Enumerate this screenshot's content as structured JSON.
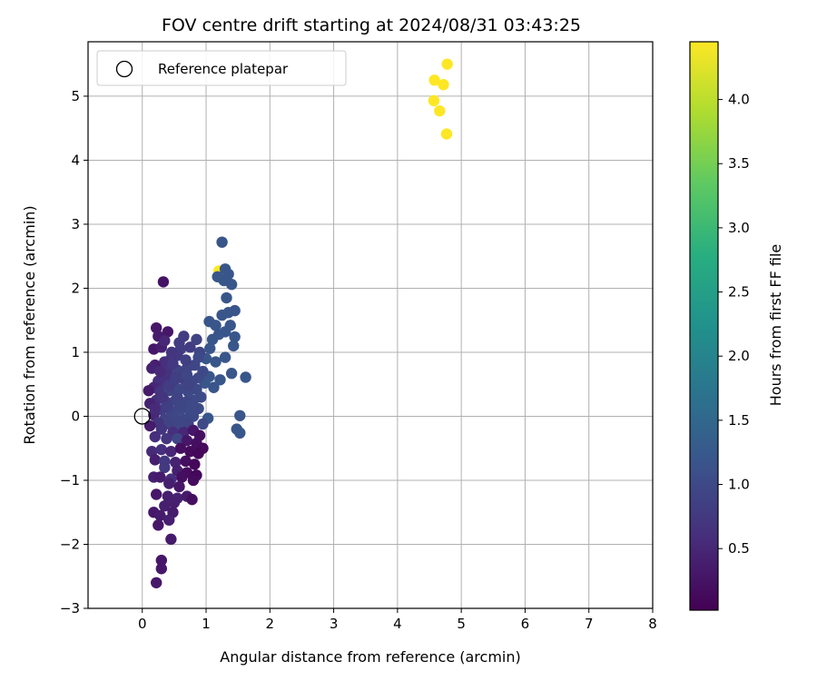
{
  "chart_data": {
    "type": "scatter",
    "title": "FOV centre drift starting at 2024/08/31 03:43:25",
    "xlabel": "Angular distance from reference (arcmin)",
    "ylabel": "Rotation from reference (arcmin)",
    "xlim": [
      -0.85,
      8.0
    ],
    "ylim": [
      -3.0,
      5.85
    ],
    "xticks": [
      0,
      1,
      2,
      3,
      4,
      5,
      6,
      7,
      8
    ],
    "yticks": [
      -3,
      -2,
      -1,
      0,
      1,
      2,
      3,
      4,
      5
    ],
    "grid": true,
    "legend": {
      "position": "top-left",
      "entries": [
        "Reference platepar"
      ]
    },
    "reference_point": {
      "x": 0,
      "y": 0
    },
    "colorbar": {
      "label": "Hours from first FF file",
      "range": [
        0.02,
        4.45
      ],
      "ticks": [
        0.5,
        1.0,
        1.5,
        2.0,
        2.5,
        3.0,
        3.5,
        4.0
      ],
      "tick_labels": [
        "0.5",
        "1.0",
        "1.5",
        "2.0",
        "2.5",
        "3.0",
        "3.5",
        "4.0"
      ],
      "colormap": "viridis"
    },
    "points": [
      {
        "x": 4.78,
        "y": 5.5,
        "c": 4.45
      },
      {
        "x": 4.58,
        "y": 5.25,
        "c": 4.45
      },
      {
        "x": 4.72,
        "y": 5.18,
        "c": 4.45
      },
      {
        "x": 4.57,
        "y": 4.93,
        "c": 4.45
      },
      {
        "x": 4.66,
        "y": 4.77,
        "c": 4.45
      },
      {
        "x": 4.77,
        "y": 4.41,
        "c": 4.45
      },
      {
        "x": 1.2,
        "y": 2.27,
        "c": 4.45
      },
      {
        "x": 1.25,
        "y": 2.72,
        "c": 1.2
      },
      {
        "x": 1.3,
        "y": 2.3,
        "c": 1.2
      },
      {
        "x": 1.35,
        "y": 2.22,
        "c": 1.2
      },
      {
        "x": 1.4,
        "y": 2.06,
        "c": 1.2
      },
      {
        "x": 1.18,
        "y": 2.18,
        "c": 1.2
      },
      {
        "x": 1.28,
        "y": 2.12,
        "c": 1.2
      },
      {
        "x": 1.32,
        "y": 1.85,
        "c": 1.2
      },
      {
        "x": 1.45,
        "y": 1.65,
        "c": 1.2
      },
      {
        "x": 1.25,
        "y": 1.58,
        "c": 1.2
      },
      {
        "x": 1.35,
        "y": 1.62,
        "c": 1.2
      },
      {
        "x": 1.05,
        "y": 1.48,
        "c": 1.2
      },
      {
        "x": 1.15,
        "y": 1.42,
        "c": 1.2
      },
      {
        "x": 1.38,
        "y": 1.42,
        "c": 1.2
      },
      {
        "x": 1.45,
        "y": 1.24,
        "c": 1.2
      },
      {
        "x": 1.3,
        "y": 1.32,
        "c": 1.2
      },
      {
        "x": 1.2,
        "y": 1.28,
        "c": 1.2
      },
      {
        "x": 1.1,
        "y": 1.2,
        "c": 1.2
      },
      {
        "x": 1.43,
        "y": 1.1,
        "c": 1.2
      },
      {
        "x": 1.3,
        "y": 0.92,
        "c": 1.2
      },
      {
        "x": 1.06,
        "y": 1.06,
        "c": 1.2
      },
      {
        "x": 1.15,
        "y": 0.85,
        "c": 1.2
      },
      {
        "x": 1.0,
        "y": 0.9,
        "c": 1.2
      },
      {
        "x": 1.4,
        "y": 0.67,
        "c": 1.2
      },
      {
        "x": 1.62,
        "y": 0.61,
        "c": 1.2
      },
      {
        "x": 1.22,
        "y": 0.57,
        "c": 1.2
      },
      {
        "x": 1.05,
        "y": 0.62,
        "c": 1.2
      },
      {
        "x": 1.12,
        "y": 0.45,
        "c": 1.2
      },
      {
        "x": 0.98,
        "y": 0.52,
        "c": 1.2
      },
      {
        "x": 1.53,
        "y": 0.01,
        "c": 1.2
      },
      {
        "x": 1.48,
        "y": -0.2,
        "c": 1.2
      },
      {
        "x": 1.53,
        "y": -0.26,
        "c": 1.2
      },
      {
        "x": 1.03,
        "y": -0.03,
        "c": 1.2
      },
      {
        "x": 0.95,
        "y": -0.12,
        "c": 1.0
      },
      {
        "x": 0.33,
        "y": 2.1,
        "c": 0.25
      },
      {
        "x": 0.22,
        "y": 1.38,
        "c": 0.3
      },
      {
        "x": 0.4,
        "y": 1.32,
        "c": 0.3
      },
      {
        "x": 0.25,
        "y": 1.25,
        "c": 0.35
      },
      {
        "x": 0.18,
        "y": 1.05,
        "c": 0.3
      },
      {
        "x": 0.3,
        "y": 1.08,
        "c": 0.4
      },
      {
        "x": 0.65,
        "y": 1.25,
        "c": 0.8
      },
      {
        "x": 0.6,
        "y": 1.05,
        "c": 0.8
      },
      {
        "x": 0.75,
        "y": 1.08,
        "c": 0.8
      },
      {
        "x": 0.85,
        "y": 1.2,
        "c": 0.9
      },
      {
        "x": 0.9,
        "y": 1.0,
        "c": 0.95
      },
      {
        "x": 0.55,
        "y": 0.95,
        "c": 0.75
      },
      {
        "x": 0.45,
        "y": 0.9,
        "c": 0.7
      },
      {
        "x": 0.35,
        "y": 0.85,
        "c": 0.6
      },
      {
        "x": 0.2,
        "y": 0.8,
        "c": 0.4
      },
      {
        "x": 0.15,
        "y": 0.75,
        "c": 0.45
      },
      {
        "x": 0.4,
        "y": 0.7,
        "c": 0.7
      },
      {
        "x": 0.55,
        "y": 0.72,
        "c": 0.9
      },
      {
        "x": 0.7,
        "y": 0.75,
        "c": 0.9
      },
      {
        "x": 0.82,
        "y": 0.8,
        "c": 0.95
      },
      {
        "x": 0.95,
        "y": 0.7,
        "c": 1.0
      },
      {
        "x": 0.88,
        "y": 0.6,
        "c": 1.0
      },
      {
        "x": 0.78,
        "y": 0.55,
        "c": 0.95
      },
      {
        "x": 0.65,
        "y": 0.58,
        "c": 0.9
      },
      {
        "x": 0.5,
        "y": 0.55,
        "c": 0.85
      },
      {
        "x": 0.35,
        "y": 0.5,
        "c": 0.75
      },
      {
        "x": 0.25,
        "y": 0.55,
        "c": 0.6
      },
      {
        "x": 0.18,
        "y": 0.45,
        "c": 0.5
      },
      {
        "x": 0.1,
        "y": 0.4,
        "c": 0.35
      },
      {
        "x": 0.28,
        "y": 0.38,
        "c": 0.7
      },
      {
        "x": 0.42,
        "y": 0.4,
        "c": 0.9
      },
      {
        "x": 0.58,
        "y": 0.42,
        "c": 0.95
      },
      {
        "x": 0.72,
        "y": 0.38,
        "c": 1.0
      },
      {
        "x": 0.85,
        "y": 0.42,
        "c": 1.0
      },
      {
        "x": 0.92,
        "y": 0.3,
        "c": 1.0
      },
      {
        "x": 0.8,
        "y": 0.25,
        "c": 1.0
      },
      {
        "x": 0.68,
        "y": 0.22,
        "c": 0.95
      },
      {
        "x": 0.52,
        "y": 0.25,
        "c": 0.95
      },
      {
        "x": 0.38,
        "y": 0.22,
        "c": 0.85
      },
      {
        "x": 0.22,
        "y": 0.25,
        "c": 0.6
      },
      {
        "x": 0.12,
        "y": 0.2,
        "c": 0.45
      },
      {
        "x": 0.3,
        "y": 0.1,
        "c": 0.8
      },
      {
        "x": 0.45,
        "y": 0.08,
        "c": 0.95
      },
      {
        "x": 0.6,
        "y": 0.1,
        "c": 1.0
      },
      {
        "x": 0.75,
        "y": 0.08,
        "c": 1.0
      },
      {
        "x": 0.88,
        "y": 0.12,
        "c": 1.0
      },
      {
        "x": 0.18,
        "y": 0.02,
        "c": 0.5
      },
      {
        "x": 0.35,
        "y": -0.05,
        "c": 0.9
      },
      {
        "x": 0.5,
        "y": -0.02,
        "c": 0.95
      },
      {
        "x": 0.65,
        "y": -0.05,
        "c": 1.0
      },
      {
        "x": 0.8,
        "y": 0.0,
        "c": 1.0
      },
      {
        "x": 0.25,
        "y": -0.1,
        "c": 0.7
      },
      {
        "x": 0.42,
        "y": -0.12,
        "c": 0.9
      },
      {
        "x": 0.58,
        "y": -0.15,
        "c": 0.95
      },
      {
        "x": 0.72,
        "y": -0.12,
        "c": 0.9
      },
      {
        "x": 0.12,
        "y": -0.15,
        "c": 0.35
      },
      {
        "x": 0.3,
        "y": -0.2,
        "c": 0.7
      },
      {
        "x": 0.48,
        "y": -0.25,
        "c": 0.6
      },
      {
        "x": 0.65,
        "y": -0.25,
        "c": 0.5
      },
      {
        "x": 0.8,
        "y": -0.22,
        "c": 0.3
      },
      {
        "x": 0.9,
        "y": -0.3,
        "c": 0.2
      },
      {
        "x": 0.2,
        "y": -0.32,
        "c": 0.6
      },
      {
        "x": 0.38,
        "y": -0.35,
        "c": 0.7
      },
      {
        "x": 0.55,
        "y": -0.35,
        "c": 0.95
      },
      {
        "x": 0.7,
        "y": -0.38,
        "c": 0.3
      },
      {
        "x": 0.85,
        "y": -0.42,
        "c": 0.2
      },
      {
        "x": 0.95,
        "y": -0.5,
        "c": 0.15
      },
      {
        "x": 0.15,
        "y": -0.55,
        "c": 0.55
      },
      {
        "x": 0.3,
        "y": -0.52,
        "c": 0.6
      },
      {
        "x": 0.45,
        "y": -0.55,
        "c": 0.5
      },
      {
        "x": 0.6,
        "y": -0.5,
        "c": 0.2
      },
      {
        "x": 0.75,
        "y": -0.55,
        "c": 0.15
      },
      {
        "x": 0.88,
        "y": -0.58,
        "c": 0.1
      },
      {
        "x": 0.2,
        "y": -0.68,
        "c": 0.4
      },
      {
        "x": 0.35,
        "y": -0.7,
        "c": 0.75
      },
      {
        "x": 0.52,
        "y": -0.72,
        "c": 0.45
      },
      {
        "x": 0.68,
        "y": -0.7,
        "c": 0.2
      },
      {
        "x": 0.82,
        "y": -0.75,
        "c": 0.1
      },
      {
        "x": 0.35,
        "y": -0.8,
        "c": 0.75
      },
      {
        "x": 0.55,
        "y": -0.85,
        "c": 0.4
      },
      {
        "x": 0.7,
        "y": -0.88,
        "c": 0.15
      },
      {
        "x": 0.85,
        "y": -0.92,
        "c": 0.1
      },
      {
        "x": 0.18,
        "y": -0.95,
        "c": 0.4
      },
      {
        "x": 0.28,
        "y": -0.95,
        "c": 0.35
      },
      {
        "x": 0.45,
        "y": -0.98,
        "c": 0.6
      },
      {
        "x": 0.62,
        "y": -0.95,
        "c": 0.2
      },
      {
        "x": 0.8,
        "y": -1.0,
        "c": 0.15
      },
      {
        "x": 0.42,
        "y": -1.05,
        "c": 0.4
      },
      {
        "x": 0.58,
        "y": -1.1,
        "c": 0.3
      },
      {
        "x": 0.22,
        "y": -1.22,
        "c": 0.3
      },
      {
        "x": 0.4,
        "y": -1.25,
        "c": 0.4
      },
      {
        "x": 0.55,
        "y": -1.28,
        "c": 0.45
      },
      {
        "x": 0.7,
        "y": -1.25,
        "c": 0.35
      },
      {
        "x": 0.78,
        "y": -1.3,
        "c": 0.2
      },
      {
        "x": 0.5,
        "y": -1.35,
        "c": 0.4
      },
      {
        "x": 0.35,
        "y": -1.4,
        "c": 0.4
      },
      {
        "x": 0.18,
        "y": -1.5,
        "c": 0.3
      },
      {
        "x": 0.28,
        "y": -1.55,
        "c": 0.35
      },
      {
        "x": 0.48,
        "y": -1.5,
        "c": 0.35
      },
      {
        "x": 0.42,
        "y": -1.62,
        "c": 0.4
      },
      {
        "x": 0.25,
        "y": -1.7,
        "c": 0.3
      },
      {
        "x": 0.45,
        "y": -1.92,
        "c": 0.35
      },
      {
        "x": 0.3,
        "y": -2.25,
        "c": 0.3
      },
      {
        "x": 0.3,
        "y": -2.38,
        "c": 0.3
      },
      {
        "x": 0.22,
        "y": -2.6,
        "c": 0.3
      },
      {
        "x": 0.55,
        "y": 0.3,
        "c": 0.9
      },
      {
        "x": 0.62,
        "y": 0.62,
        "c": 0.85
      },
      {
        "x": 0.48,
        "y": 0.82,
        "c": 0.75
      },
      {
        "x": 0.38,
        "y": 0.62,
        "c": 0.65
      },
      {
        "x": 0.28,
        "y": 0.7,
        "c": 0.55
      },
      {
        "x": 0.72,
        "y": 0.48,
        "c": 0.9
      },
      {
        "x": 0.42,
        "y": 0.48,
        "c": 0.8
      },
      {
        "x": 0.68,
        "y": 0.88,
        "c": 0.85
      },
      {
        "x": 0.32,
        "y": 0.3,
        "c": 0.7
      },
      {
        "x": 0.58,
        "y": 0.15,
        "c": 0.95
      },
      {
        "x": 0.2,
        "y": 0.12,
        "c": 0.55
      },
      {
        "x": 0.4,
        "y": 0.15,
        "c": 0.85
      },
      {
        "x": 0.78,
        "y": 0.18,
        "c": 1.0
      },
      {
        "x": 0.62,
        "y": -0.08,
        "c": 0.95
      },
      {
        "x": 0.52,
        "y": 0.6,
        "c": 0.85
      },
      {
        "x": 0.88,
        "y": 0.92,
        "c": 1.0
      },
      {
        "x": 0.46,
        "y": 1.0,
        "c": 0.7
      },
      {
        "x": 0.7,
        "y": 0.65,
        "c": 0.95
      },
      {
        "x": 0.35,
        "y": 1.18,
        "c": 0.5
      },
      {
        "x": 0.58,
        "y": 1.15,
        "c": 0.8
      }
    ]
  }
}
